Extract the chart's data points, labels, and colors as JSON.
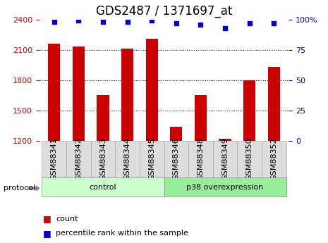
{
  "title": "GDS2487 / 1371697_at",
  "samples": [
    "GSM88341",
    "GSM88342",
    "GSM88343",
    "GSM88344",
    "GSM88345",
    "GSM88346",
    "GSM88348",
    "GSM88349",
    "GSM88350",
    "GSM88352"
  ],
  "bar_values": [
    2160,
    2130,
    1650,
    2110,
    2210,
    1340,
    1650,
    1220,
    1800,
    1930
  ],
  "dot_values": [
    98,
    99,
    98,
    98,
    99,
    97,
    96,
    93,
    97,
    97
  ],
  "ylim_left": [
    1200,
    2400
  ],
  "ylim_right": [
    0,
    100
  ],
  "yticks_left": [
    1200,
    1500,
    1800,
    2100,
    2400
  ],
  "yticks_right": [
    0,
    25,
    50,
    75,
    100
  ],
  "bar_color": "#cc0000",
  "dot_color": "#0000cc",
  "groups": [
    {
      "label": "control",
      "start": 0,
      "end": 5,
      "color": "#ccffcc"
    },
    {
      "label": "p38 overexpression",
      "start": 5,
      "end": 10,
      "color": "#99ee99"
    }
  ],
  "protocol_label": "protocol",
  "grid_color": "black",
  "background_color": "#ffffff",
  "left_tick_color": "#cc0000",
  "right_tick_color": "#0000cc",
  "title_fontsize": 12,
  "tick_fontsize": 8,
  "bar_width": 0.5,
  "sample_box_color": "#dddddd",
  "sample_box_edge": "#aaaaaa",
  "arrow_color": "#888888"
}
